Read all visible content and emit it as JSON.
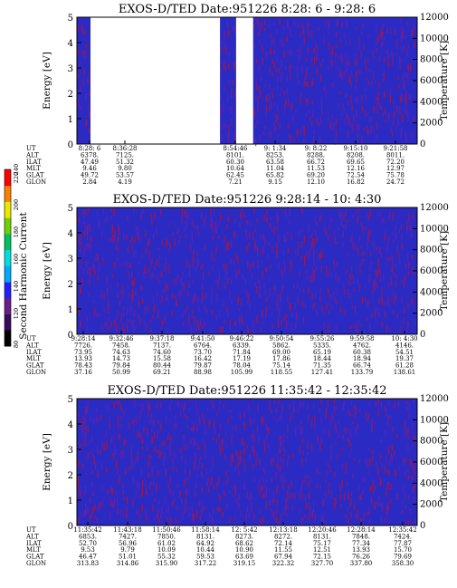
{
  "colors": {
    "background": "#2b2bc4",
    "mask": "#ffffff",
    "speckle_red": "#a8164a",
    "speckle_purple": "#6a1fa8"
  },
  "colorbar": {
    "label": "Second Harmonic Current",
    "ticks": [
      "80",
      "120",
      "140",
      "160",
      "180",
      "200",
      "220",
      "240"
    ],
    "colors": [
      "#000000",
      "#3a0a5e",
      "#6b1d8a",
      "#2020ff",
      "#00aaff",
      "#00dddd",
      "#00c060",
      "#70d000",
      "#e8e800",
      "#ff8000",
      "#ff0000"
    ]
  },
  "chart_data": [
    {
      "type": "heatmap",
      "title": "EXOS-D/TED   Date:951226   8:28: 6 -  9:28: 6",
      "ylabel": "Energy [eV]",
      "ylabel_right": "Temperature [K]",
      "ylim": [
        0,
        5
      ],
      "ylim_right": [
        0,
        12000
      ],
      "yticks": [
        "0",
        "1",
        "2",
        "3",
        "4",
        "5"
      ],
      "yticks_right": [
        "0",
        "2000",
        "4000",
        "6000",
        "8000",
        "10000",
        "12000"
      ],
      "missing_data_intervals": [
        [
          "8:30:30",
          "8:53:20"
        ],
        [
          "8:56:10",
          "8:59:10"
        ]
      ],
      "ephemeris": {
        "labels": [
          "UT",
          "ALT",
          "ILAT",
          "MLT",
          "GLAT",
          "GLON"
        ],
        "columns": [
          [
            "8:28: 6",
            "6378.",
            "47.49",
            "9.46",
            "49.72",
            "2.84"
          ],
          [
            "8:36:28",
            "7125.",
            "51.32",
            "9.80",
            "53.57",
            "4.19"
          ],
          [
            "",
            "",
            "",
            "",
            "",
            ""
          ],
          [
            "8:54:46",
            "8101.",
            "60.30",
            "10.64",
            "62.45",
            "7.21"
          ],
          [
            "9: 1:34",
            "8253.",
            "63.58",
            "11.04",
            "65.82",
            "9.15"
          ],
          [
            "9: 8:22",
            "8288.",
            "66.72",
            "11.53",
            "69.20",
            "12.10"
          ],
          [
            "9:15:10",
            "8208.",
            "69.65",
            "12.16",
            "72.54",
            "16.82"
          ],
          [
            "9:21:58",
            "8011.",
            "72.20",
            "12.97",
            "75.78",
            "24.72"
          ]
        ]
      }
    },
    {
      "type": "heatmap",
      "title": "EXOS-D/TED   Date:951226   9:28:14 -  10: 4:30",
      "ylabel": "Energy [eV]",
      "ylabel_right": "Temperature [K]",
      "ylim": [
        0,
        5
      ],
      "ylim_right": [
        0,
        12000
      ],
      "yticks": [
        "0",
        "1",
        "2",
        "3",
        "4",
        "5"
      ],
      "yticks_right": [
        "0",
        "2000",
        "4000",
        "6000",
        "8000",
        "10000",
        "12000"
      ],
      "ephemeris": {
        "labels": [
          "UT",
          "ALT",
          "ILAT",
          "MLT",
          "GLAT",
          "GLON"
        ],
        "columns": [
          [
            "9:28:14",
            "7726.",
            "73.95",
            "13.93",
            "78.43",
            "37.16"
          ],
          [
            "9:32:46",
            "7458.",
            "74.63",
            "14.73",
            "79.84",
            "50.99"
          ],
          [
            "9:37:18",
            "7137.",
            "74.60",
            "15.58",
            "80.44",
            "69.21"
          ],
          [
            "9:41:50",
            "6764.",
            "73.70",
            "16.42",
            "79.87",
            "88.98"
          ],
          [
            "9:46:22",
            "6339.",
            "71.84",
            "17.19",
            "78.04",
            "105.99"
          ],
          [
            "9:50:54",
            "5862.",
            "69.00",
            "17.86",
            "75.14",
            "118.55"
          ],
          [
            "9:55:26",
            "5335.",
            "65.19",
            "18.44",
            "71.35",
            "127.41"
          ],
          [
            "9:59:58",
            "4762.",
            "60.38",
            "18.94",
            "66.74",
            "133.79"
          ],
          [
            "10: 4:30",
            "4146.",
            "54.51",
            "19.37",
            "61.28",
            "138.61"
          ]
        ]
      }
    },
    {
      "type": "heatmap",
      "title": "EXOS-D/TED   Date:951226   11:35:42 -  12:35:42",
      "ylabel": "Energy [eV]",
      "ylabel_right": "Temperature [K]",
      "ylim": [
        0,
        5
      ],
      "ylim_right": [
        0,
        12000
      ],
      "yticks": [
        "0",
        "1",
        "2",
        "3",
        "4",
        "5"
      ],
      "yticks_right": [
        "0",
        "2000",
        "4000",
        "6000",
        "8000",
        "10000",
        "12000"
      ],
      "ephemeris": {
        "labels": [
          "UT",
          "ALT",
          "ILAT",
          "MLT",
          "GLAT",
          "GLON"
        ],
        "columns": [
          [
            "11:35:42",
            "6853.",
            "52.70",
            "9.53",
            "46.47",
            "313.83"
          ],
          [
            "11:43:18",
            "7427.",
            "56.96",
            "9.79",
            "51.01",
            "314.86"
          ],
          [
            "11:50:46",
            "7850.",
            "61.02",
            "10.09",
            "55.32",
            "315.90"
          ],
          [
            "11:58:14",
            "8131.",
            "64.92",
            "10.44",
            "59.53",
            "317.22"
          ],
          [
            "12: 5:42",
            "8273.",
            "68.62",
            "10.90",
            "63.69",
            "319.15"
          ],
          [
            "12:13:18",
            "8272.",
            "72.14",
            "11.55",
            "67.94",
            "322.32"
          ],
          [
            "12:20:46",
            "8131.",
            "75.17",
            "12.51",
            "72.15",
            "327.70"
          ],
          [
            "12:28:14",
            "7848.",
            "77.34",
            "13.93",
            "76.26",
            "337.80"
          ],
          [
            "12:35:42",
            "7424.",
            "77.87",
            "15.70",
            "79.69",
            "358.30"
          ]
        ]
      }
    }
  ]
}
